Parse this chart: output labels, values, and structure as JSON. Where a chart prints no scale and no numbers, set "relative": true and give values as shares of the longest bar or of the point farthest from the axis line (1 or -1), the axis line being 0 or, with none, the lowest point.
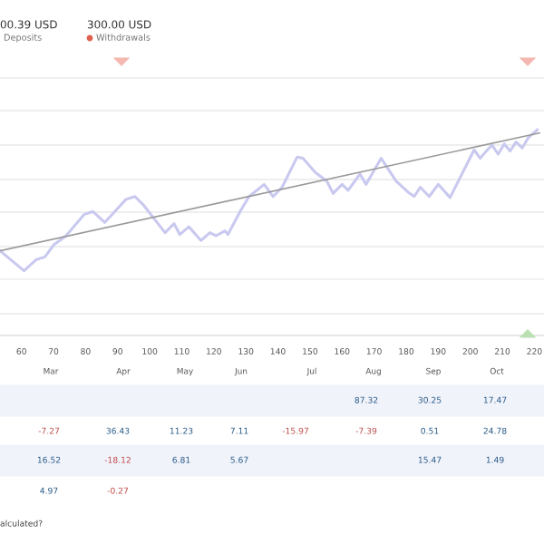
{
  "chart_data": {
    "type": "line",
    "relative": true,
    "grid": "y",
    "tick_labels": "x",
    "legend": false,
    "marker": "none",
    "xlim": [
      53.3,
      223
    ],
    "xticks": [
      60,
      70,
      80,
      90,
      100,
      110,
      120,
      130,
      140,
      150,
      160,
      170,
      180,
      190,
      200,
      210,
      220
    ],
    "series": [
      {
        "color": "#c9c9f0",
        "x": [
          53.3,
          60.8,
          64.5,
          67.3,
          70.1,
          73.9,
          79.5,
          82.3,
          86.0,
          92.6,
          95.4,
          98.2,
          104.8,
          107.6,
          109.4,
          112.2,
          116.0,
          118.8,
          120.7,
          123.5,
          124.4,
          128.2,
          131.0,
          135.7,
          138.5,
          141.3,
          146.0,
          147.8,
          151.6,
          155.3,
          157.2,
          160.0,
          161.9,
          165.6,
          167.5,
          172.2,
          176.9,
          180.6,
          182.5,
          184.4,
          187.2,
          190.0,
          193.7,
          201.2,
          203.1,
          205.0,
          206.8,
          208.7,
          210.6,
          212.4,
          214.3,
          216.2,
          218.1,
          220.9
        ],
        "values": [
          0.412,
          0.315,
          0.368,
          0.382,
          0.441,
          0.485,
          0.588,
          0.603,
          0.55,
          0.662,
          0.676,
          0.632,
          0.5,
          0.544,
          0.491,
          0.529,
          0.462,
          0.5,
          0.485,
          0.509,
          0.491,
          0.603,
          0.676,
          0.735,
          0.676,
          0.721,
          0.868,
          0.862,
          0.794,
          0.75,
          0.691,
          0.735,
          0.706,
          0.785,
          0.735,
          0.862,
          0.75,
          0.697,
          0.676,
          0.721,
          0.676,
          0.735,
          0.671,
          0.903,
          0.862,
          0.897,
          0.926,
          0.882,
          0.932,
          0.897,
          0.941,
          0.912,
          0.962,
          1.0
        ]
      },
      {
        "type": "line",
        "color": "#9a9a9a",
        "x": [
          53.3,
          221.6
        ],
        "values": [
          0.412,
          0.985
        ]
      }
    ],
    "annotations": [
      "00.39 USD",
      "Deposits",
      "300.00 USD",
      "Withdrawals",
      "Mar",
      "Apr",
      "May",
      "Jun",
      "Jul",
      "Aug",
      "Sep",
      "Oct",
      "87.32",
      "30.25",
      "17.47",
      "-7.27",
      "36.43",
      "11.23",
      "7.11",
      "-15.97",
      "-7.39",
      "0.51",
      "24.78",
      "16.52",
      "-18.12",
      "6.81",
      "5.67",
      "15.47",
      "1.49",
      "4.97",
      "-0.27",
      "alculated?"
    ]
  }
}
